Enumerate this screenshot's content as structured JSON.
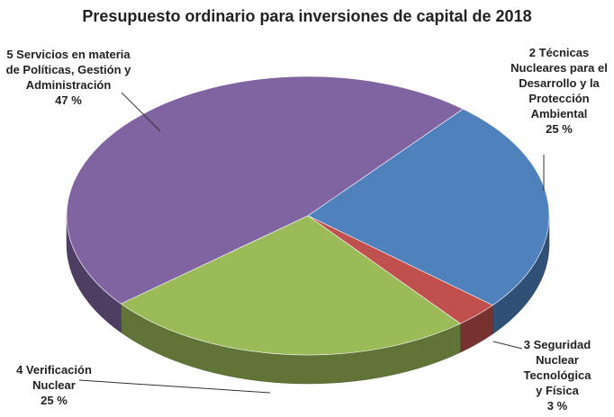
{
  "chart_data": {
    "type": "pie",
    "title": "Presupuesto ordinario para inversiones de capital de 2018",
    "categories": [
      "2 Técnicas Nucleares para el Desarrollo y la Protección Ambiental",
      "3 Seguridad Nuclear Tecnológica y Física",
      "4 Verificación Nuclear",
      "5 Servicios en materia de Políticas, Gestión y Administración"
    ],
    "values": [
      25,
      3,
      25,
      47
    ],
    "value_labels": [
      "25 %",
      "3 %",
      "25 %",
      "47 %"
    ],
    "colors": [
      "#4f81bd",
      "#c0504d",
      "#9bbb59",
      "#8064a2"
    ]
  }
}
